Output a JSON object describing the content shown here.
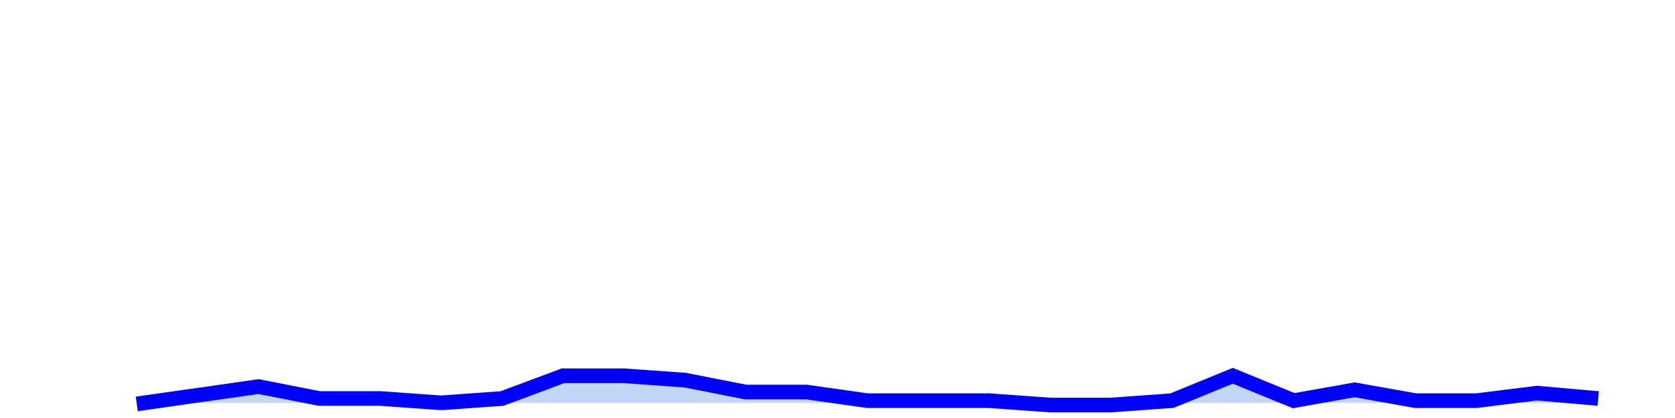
{
  "chart_data": {
    "type": "area",
    "categories": [
      null,
      null,
      null,
      null,
      null,
      null,
      null,
      null,
      null,
      null,
      null,
      null,
      null,
      null,
      null,
      null,
      null,
      null,
      null,
      null,
      null,
      null,
      null,
      null,
      null
    ],
    "values": [
      -1,
      7,
      15,
      4,
      4,
      0,
      4,
      25,
      25,
      21,
      10,
      10,
      2,
      2,
      2,
      -2,
      -2,
      2,
      25,
      2,
      12,
      2,
      2,
      9,
      4
    ],
    "color": "#0000ff",
    "fill_color": "#c2d6f6",
    "ylim": [
      -14,
      372
    ],
    "grid": false
  }
}
